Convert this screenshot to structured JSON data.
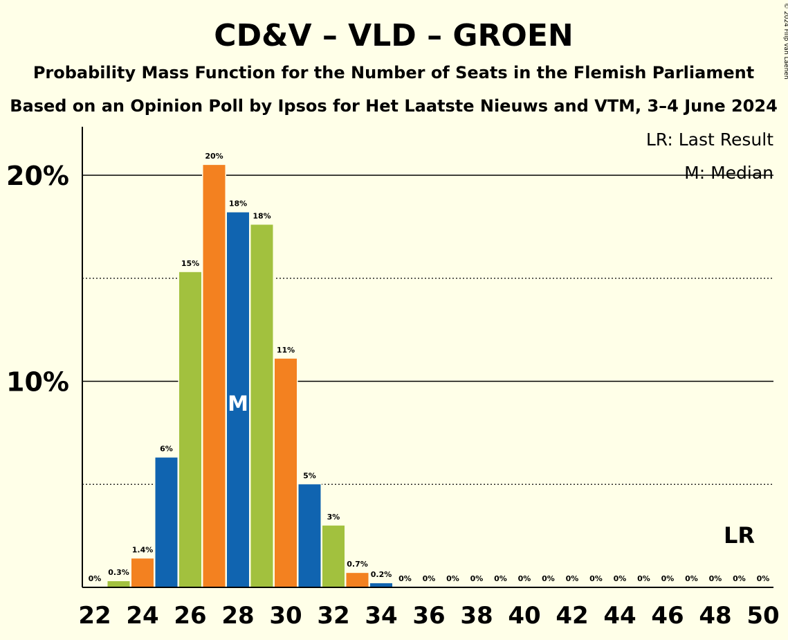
{
  "chart_data": {
    "type": "bar",
    "title": "CD&V – VLD – GROEN",
    "subtitle1": "Probability Mass Function for the Number of Seats in the Flemish Parliament",
    "subtitle2": "Based on an Opinion Poll by Ipsos for Het Laatste Nieuws and VTM, 3–4 June 2024",
    "copyright": "© 2024 Filip van Laenen",
    "legend": {
      "lr": "LR: Last Result",
      "m": "M: Median",
      "placement": "top-right"
    },
    "x": [
      22,
      23,
      24,
      25,
      26,
      27,
      28,
      29,
      30,
      31,
      32,
      33,
      34,
      35,
      36,
      37,
      38,
      39,
      40,
      41,
      42,
      43,
      44,
      45,
      46,
      47,
      48,
      49,
      50
    ],
    "values": [
      0,
      0.3,
      1.4,
      6.3,
      15.3,
      20.5,
      18.2,
      17.6,
      11.1,
      5.0,
      3.0,
      0.7,
      0.2,
      0,
      0,
      0,
      0,
      0,
      0,
      0,
      0,
      0,
      0,
      0,
      0,
      0,
      0,
      0,
      0
    ],
    "value_labels": [
      "0%",
      "0.3%",
      "1.4%",
      "6%",
      "15%",
      "20%",
      "18%",
      "18%",
      "11%",
      "5%",
      "3%",
      "0.7%",
      "0.2%",
      "0%",
      "0%",
      "0%",
      "0%",
      "0%",
      "0%",
      "0%",
      "0%",
      "0%",
      "0%",
      "0%",
      "0%",
      "0%",
      "0%",
      "0%",
      "0%"
    ],
    "x_tick_labels": [
      "22",
      "24",
      "26",
      "28",
      "30",
      "32",
      "34",
      "36",
      "38",
      "40",
      "42",
      "44",
      "46",
      "48",
      "50"
    ],
    "y_tick_labels": [
      {
        "value": 10,
        "label": "10%"
      },
      {
        "value": 20,
        "label": "20%"
      }
    ],
    "ylim": [
      0,
      22.4
    ],
    "median_seat": 28,
    "median_marker": "M",
    "last_result_seat": 49,
    "last_result_marker": "LR",
    "colors": {
      "blue": "#1064B0",
      "green": "#A2C13E",
      "orange": "#F38120",
      "background": "#FFFFE8"
    },
    "color_cycle": [
      "blue",
      "green",
      "orange"
    ],
    "grid": "solid at 10% and 20%, dotted at 5% and 15%"
  }
}
